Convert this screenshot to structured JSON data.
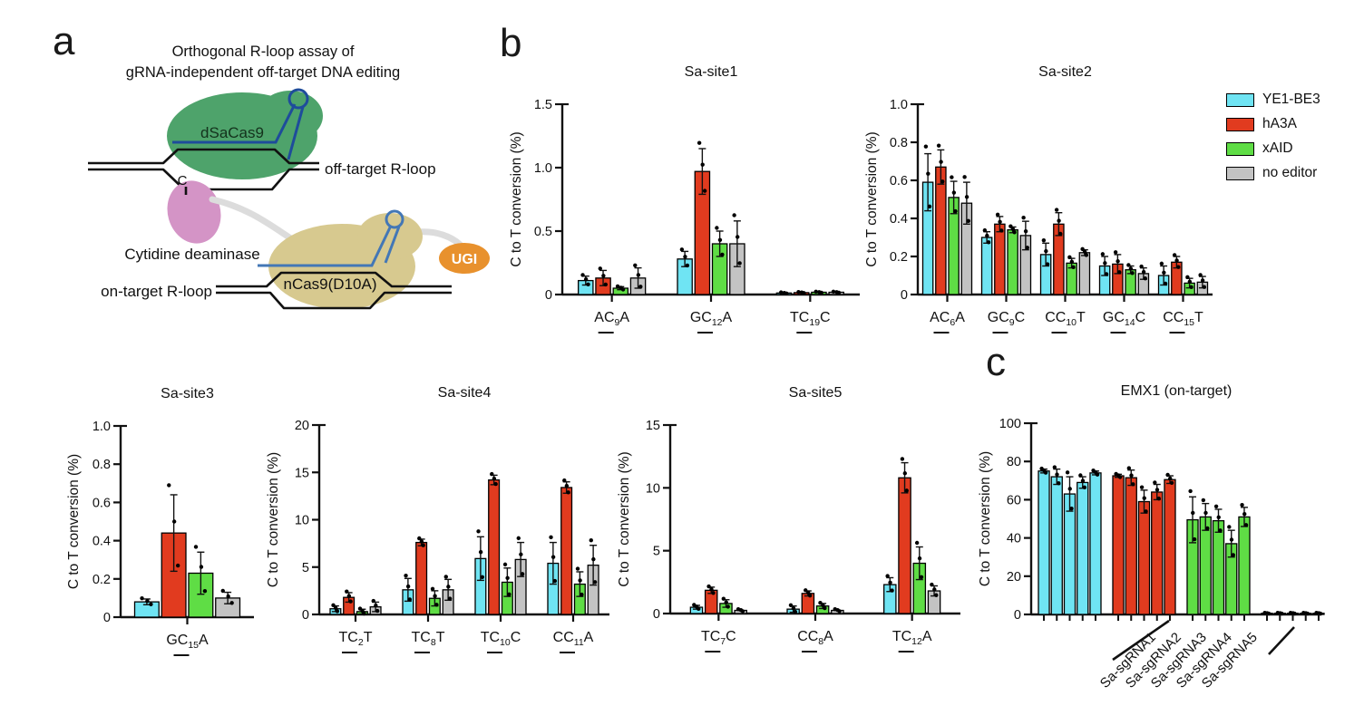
{
  "panel_letters": {
    "a": "a",
    "b": "b",
    "c": "c"
  },
  "panel_a": {
    "title_line1": "Orthogonal R-loop assay of",
    "title_line2": "gRNA-independent off-target DNA editing",
    "labels": {
      "dsacas9": "dSaCas9",
      "c_base": "C",
      "off_target": "off-target R-loop",
      "cytidine_deaminase": "Cytidine deaminase",
      "ncas9": "nCas9(D10A)",
      "on_target": "on-target R-loop",
      "ugi": "UGI"
    },
    "colors": {
      "dsacas9": "#4EA36B",
      "deaminase": "#D494C6",
      "ncas9": "#D7C98F",
      "ugi": "#E8912D",
      "sgrna1": "#1E4C9B",
      "sgrna2": "#4377B6",
      "linker": "#DCDCDC"
    }
  },
  "legend": {
    "items": [
      {
        "label": "YE1-BE3",
        "color": "#6FE4F3"
      },
      {
        "label": "hA3A",
        "color": "#E13B1F"
      },
      {
        "label": "xAID",
        "color": "#5FDD45"
      },
      {
        "label": "no editor",
        "color": "#C3C3C3"
      }
    ]
  },
  "chart_data": [
    {
      "id": "sa-site1",
      "type": "bar",
      "title": "Sa-site1",
      "ylabel": "C to T conversion (%)",
      "ylim": [
        0,
        1.5
      ],
      "yticks": [
        0,
        0.5,
        1.0,
        1.5
      ],
      "ytick_labels": [
        "0",
        "0.5",
        "1.0",
        "1.5"
      ],
      "categories": [
        {
          "pre": "AC",
          "sub": "9",
          "post": "A"
        },
        {
          "pre": "GC",
          "sub": "12",
          "post": "A"
        },
        {
          "pre": "TC",
          "sub": "19",
          "post": "C"
        }
      ],
      "series": [
        {
          "name": "YE1-BE3",
          "color": "#6FE4F3",
          "values": [
            0.11,
            0.28,
            0.012
          ],
          "errors": [
            0.035,
            0.06,
            0.004
          ]
        },
        {
          "name": "hA3A",
          "color": "#E13B1F",
          "values": [
            0.13,
            0.97,
            0.015
          ],
          "errors": [
            0.06,
            0.18,
            0.004
          ]
        },
        {
          "name": "xAID",
          "color": "#5FDD45",
          "values": [
            0.05,
            0.4,
            0.018
          ],
          "errors": [
            0.012,
            0.1,
            0.004
          ]
        },
        {
          "name": "no editor",
          "color": "#C3C3C3",
          "values": [
            0.13,
            0.4,
            0.018
          ],
          "errors": [
            0.08,
            0.18,
            0.004
          ]
        }
      ]
    },
    {
      "id": "sa-site2",
      "type": "bar",
      "title": "Sa-site2",
      "ylabel": "C to T conversion (%)",
      "ylim": [
        0,
        1.0
      ],
      "yticks": [
        0,
        0.2,
        0.4,
        0.6,
        0.8,
        1.0
      ],
      "ytick_labels": [
        "0",
        "0.2",
        "0.4",
        "0.6",
        "0.8",
        "1.0"
      ],
      "categories": [
        {
          "pre": "AC",
          "sub": "6",
          "post": "A"
        },
        {
          "pre": "GC",
          "sub": "9",
          "post": "C"
        },
        {
          "pre": "CC",
          "sub": "10",
          "post": "T"
        },
        {
          "pre": "GC",
          "sub": "14",
          "post": "C"
        },
        {
          "pre": "CC",
          "sub": "15",
          "post": "T"
        }
      ],
      "series": [
        {
          "name": "YE1-BE3",
          "color": "#6FE4F3",
          "values": [
            0.59,
            0.3,
            0.21,
            0.15,
            0.1
          ],
          "errors": [
            0.15,
            0.03,
            0.06,
            0.05,
            0.05
          ]
        },
        {
          "name": "hA3A",
          "color": "#E13B1F",
          "values": [
            0.67,
            0.37,
            0.37,
            0.16,
            0.17
          ],
          "errors": [
            0.09,
            0.04,
            0.06,
            0.05,
            0.03
          ]
        },
        {
          "name": "xAID",
          "color": "#5FDD45",
          "values": [
            0.51,
            0.34,
            0.165,
            0.13,
            0.06
          ],
          "errors": [
            0.085,
            0.015,
            0.025,
            0.02,
            0.025
          ]
        },
        {
          "name": "no editor",
          "color": "#C3C3C3",
          "values": [
            0.48,
            0.31,
            0.22,
            0.11,
            0.065
          ],
          "errors": [
            0.11,
            0.075,
            0.015,
            0.03,
            0.03
          ]
        }
      ]
    },
    {
      "id": "sa-site3",
      "type": "bar",
      "title": "Sa-site3",
      "ylabel": "C to T conversion (%)",
      "ylim": [
        0,
        1.0
      ],
      "yticks": [
        0,
        0.2,
        0.4,
        0.6,
        0.8,
        1.0
      ],
      "ytick_labels": [
        "0",
        "0.2",
        "0.4",
        "0.6",
        "0.8",
        "1.0"
      ],
      "categories": [
        {
          "pre": "GC",
          "sub": "15",
          "post": "A"
        }
      ],
      "series": [
        {
          "name": "YE1-BE3",
          "color": "#6FE4F3",
          "values": [
            0.08
          ],
          "errors": [
            0.015
          ]
        },
        {
          "name": "hA3A",
          "color": "#E13B1F",
          "values": [
            0.44
          ],
          "errors": [
            0.2
          ]
        },
        {
          "name": "xAID",
          "color": "#5FDD45",
          "values": [
            0.23
          ],
          "errors": [
            0.11
          ]
        },
        {
          "name": "no editor",
          "color": "#C3C3C3",
          "values": [
            0.1
          ],
          "errors": [
            0.03
          ]
        }
      ]
    },
    {
      "id": "sa-site4",
      "type": "bar",
      "title": "Sa-site4",
      "ylabel": "C to T conversion (%)",
      "ylim": [
        0,
        20
      ],
      "yticks": [
        0,
        5,
        10,
        15,
        20
      ],
      "ytick_labels": [
        "0",
        "5",
        "10",
        "15",
        "20"
      ],
      "categories": [
        {
          "pre": "TC",
          "sub": "2",
          "post": "T"
        },
        {
          "pre": "TC",
          "sub": "8",
          "post": "T"
        },
        {
          "pre": "TC",
          "sub": "10",
          "post": "C"
        },
        {
          "pre": "CC",
          "sub": "11",
          "post": "A"
        }
      ],
      "series": [
        {
          "name": "YE1-BE3",
          "color": "#6FE4F3",
          "values": [
            0.6,
            2.6,
            5.9,
            5.4
          ],
          "errors": [
            0.3,
            1.2,
            2.3,
            2.2
          ]
        },
        {
          "name": "hA3A",
          "color": "#E13B1F",
          "values": [
            1.8,
            7.6,
            14.2,
            13.4
          ],
          "errors": [
            0.5,
            0.35,
            0.5,
            0.6
          ]
        },
        {
          "name": "xAID",
          "color": "#5FDD45",
          "values": [
            0.3,
            1.7,
            3.4,
            3.2
          ],
          "errors": [
            0.25,
            0.8,
            1.5,
            1.3
          ]
        },
        {
          "name": "no editor",
          "color": "#C3C3C3",
          "values": [
            0.8,
            2.6,
            5.8,
            5.2
          ],
          "errors": [
            0.5,
            1.1,
            1.8,
            2.1
          ]
        }
      ]
    },
    {
      "id": "sa-site5",
      "type": "bar",
      "title": "Sa-site5",
      "ylabel": "C to T conversion (%)",
      "ylim": [
        0,
        15
      ],
      "yticks": [
        0,
        5,
        10,
        15
      ],
      "ytick_labels": [
        "0",
        "5",
        "10",
        "15"
      ],
      "categories": [
        {
          "pre": "TC",
          "sub": "7",
          "post": "C"
        },
        {
          "pre": "CC",
          "sub": "8",
          "post": "A"
        },
        {
          "pre": "TC",
          "sub": "12",
          "post": "A"
        }
      ],
      "series": [
        {
          "name": "YE1-BE3",
          "color": "#6FE4F3",
          "values": [
            0.5,
            0.35,
            2.3
          ],
          "errors": [
            0.15,
            0.25,
            0.55
          ]
        },
        {
          "name": "hA3A",
          "color": "#E13B1F",
          "values": [
            1.85,
            1.6,
            10.8
          ],
          "errors": [
            0.25,
            0.2,
            1.2
          ]
        },
        {
          "name": "xAID",
          "color": "#5FDD45",
          "values": [
            0.8,
            0.6,
            4.0
          ],
          "errors": [
            0.3,
            0.2,
            1.3
          ]
        },
        {
          "name": "no editor",
          "color": "#C3C3C3",
          "values": [
            0.25,
            0.25,
            1.8
          ],
          "errors": [
            0.08,
            0.08,
            0.4
          ]
        }
      ]
    },
    {
      "id": "emx1",
      "type": "bar",
      "title": "EMX1 (on-target)",
      "ylabel": "C to T conversion (%)",
      "ylim": [
        0,
        100
      ],
      "yticks": [
        0,
        20,
        40,
        60,
        80,
        100
      ],
      "ytick_labels": [
        "0",
        "20",
        "40",
        "60",
        "80",
        "100"
      ],
      "group_by_series": true,
      "rotated_categories": true,
      "categories": [
        "Sa-sgRNA1",
        "Sa-sgRNA2",
        "Sa-sgRNA3",
        "Sa-sgRNA4",
        "Sa-sgRNA5"
      ],
      "series": [
        {
          "name": "YE1-BE3",
          "color": "#6FE4F3",
          "values": [
            75,
            72,
            63,
            69,
            74
          ],
          "errors": [
            1,
            4,
            9,
            3,
            1
          ]
        },
        {
          "name": "hA3A",
          "color": "#E13B1F",
          "values": [
            72.5,
            71.5,
            59,
            64,
            70.5
          ],
          "errors": [
            0.8,
            4,
            6,
            4,
            2
          ]
        },
        {
          "name": "xAID",
          "color": "#5FDD45",
          "values": [
            49.5,
            51,
            49,
            37,
            51
          ],
          "errors": [
            12,
            7,
            6,
            7,
            5
          ]
        },
        {
          "name": "no editor",
          "color": "#C3C3C3",
          "values": [
            0.6,
            0.6,
            0.6,
            0.6,
            0.6
          ],
          "errors": [
            0.2,
            0.2,
            0.2,
            0.2,
            0.2
          ]
        }
      ]
    }
  ]
}
